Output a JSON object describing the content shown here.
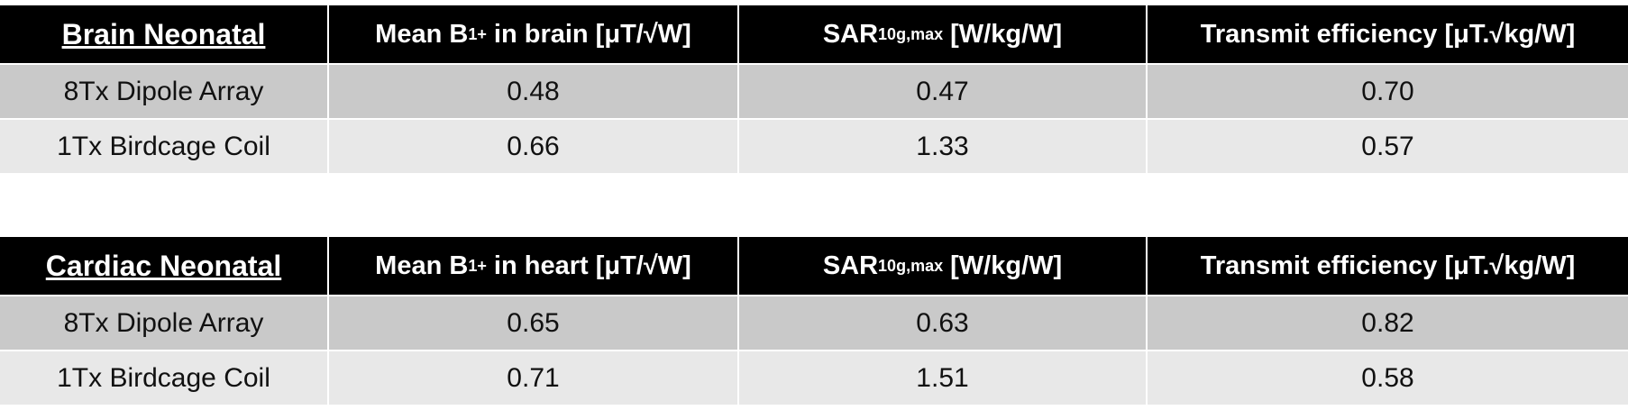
{
  "tables": [
    {
      "header": {
        "title": "Brain Neonatal",
        "columns": [
          {
            "a": "Mean B",
            "sub": "1",
            "sup": "+",
            "b": " in brain [μT/√W]"
          },
          {
            "a": "SAR",
            "sub": "10g,max",
            "b": " [W/kg/W]"
          },
          {
            "a": "Transmit efficiency [μT.√kg/W]"
          }
        ]
      },
      "rows": [
        [
          "8Tx Dipole Array",
          "0.48",
          "0.47",
          "0.70"
        ],
        [
          "1Tx Birdcage Coil",
          "0.66",
          "1.33",
          "0.57"
        ]
      ]
    },
    {
      "header": {
        "title": "Cardiac Neonatal",
        "columns": [
          {
            "a": "Mean B",
            "sub": "1",
            "sup": "+",
            "b": " in heart [μT/√W]"
          },
          {
            "a": "SAR",
            "sub": "10g,max",
            "b": " [W/kg/W]"
          },
          {
            "a": "Transmit efficiency [μT.√kg/W]"
          }
        ]
      },
      "rows": [
        [
          "8Tx Dipole Array",
          "0.65",
          "0.63",
          "0.82"
        ],
        [
          "1Tx Birdcage Coil",
          "0.71",
          "1.51",
          "0.58"
        ]
      ]
    }
  ]
}
